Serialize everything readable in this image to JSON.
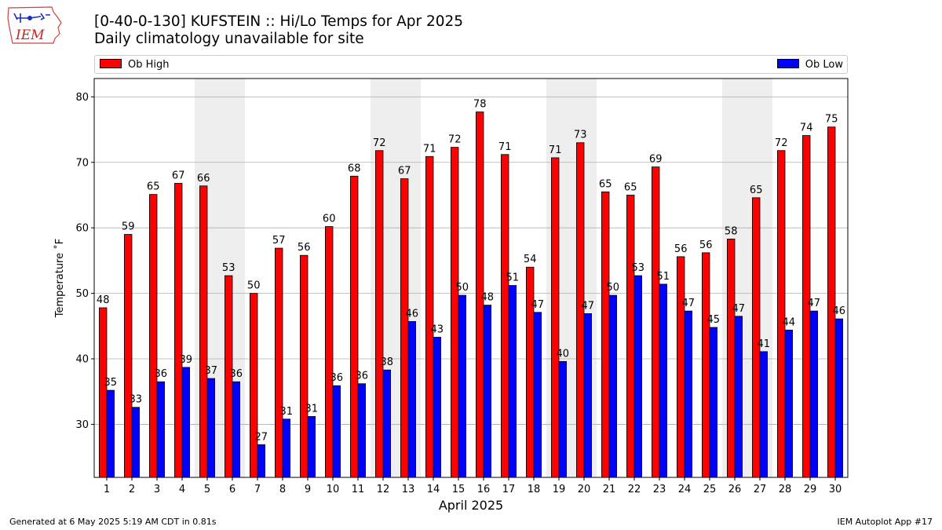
{
  "header": {
    "logo_text": "IEM",
    "title": "[0-40-0-130] KUFSTEIN :: Hi/Lo Temps for Apr 2025",
    "subtitle": "Daily climatology unavailable for site"
  },
  "legend": {
    "high_label": "Ob High",
    "low_label": "Ob Low",
    "placement": "top, above plot"
  },
  "colors": {
    "high": "#ff0000",
    "low": "#0000ff",
    "weekend_shade": "#eeeeee",
    "grid": "#b0b0b0"
  },
  "footer": {
    "left": "Generated at 6 May 2025 5:19 AM CDT in 0.81s",
    "right": "IEM Autoplot App #17"
  },
  "chart_data": {
    "type": "bar",
    "xlabel": "April 2025",
    "ylabel": "Temperature ˚F",
    "ylim": [
      21.9,
      82.8
    ],
    "yticks": [
      30,
      40,
      50,
      60,
      70,
      80
    ],
    "grid": true,
    "categories": [
      "1",
      "2",
      "3",
      "4",
      "5",
      "6",
      "7",
      "8",
      "9",
      "10",
      "11",
      "12",
      "13",
      "14",
      "15",
      "16",
      "17",
      "18",
      "19",
      "20",
      "21",
      "22",
      "23",
      "24",
      "25",
      "26",
      "27",
      "28",
      "29",
      "30"
    ],
    "shaded_days": [
      "5",
      "6",
      "12",
      "13",
      "19",
      "20",
      "26",
      "27"
    ],
    "series": [
      {
        "name": "Ob High",
        "values": [
          47.8,
          59.0,
          65.1,
          66.8,
          66.4,
          52.7,
          50.0,
          56.9,
          55.8,
          60.2,
          67.9,
          71.8,
          67.5,
          70.9,
          72.3,
          77.7,
          71.2,
          54.0,
          70.7,
          73.0,
          65.5,
          65.0,
          69.3,
          55.6,
          56.2,
          58.3,
          64.6,
          71.8,
          74.1,
          75.4
        ]
      },
      {
        "name": "Ob Low",
        "values": [
          35.2,
          32.6,
          36.5,
          38.7,
          37.0,
          36.5,
          26.9,
          30.8,
          31.2,
          35.9,
          36.2,
          38.3,
          45.7,
          43.3,
          49.7,
          48.2,
          51.2,
          47.1,
          39.6,
          46.9,
          49.7,
          52.7,
          51.4,
          47.3,
          44.8,
          46.5,
          41.1,
          44.4,
          47.3,
          46.1
        ]
      }
    ],
    "data_labels": {
      "high": [
        "48",
        "59",
        "65",
        "67",
        "66",
        "53",
        "50",
        "57",
        "56",
        "60",
        "68",
        "72",
        "67",
        "71",
        "72",
        "78",
        "71",
        "54",
        "71",
        "73",
        "65",
        "65",
        "69",
        "56",
        "56",
        "58",
        "65",
        "72",
        "74",
        "75"
      ],
      "low": [
        "35",
        "33",
        "36",
        "39",
        "37",
        "36",
        "27",
        "31",
        "31",
        "36",
        "36",
        "38",
        "46",
        "43",
        "50",
        "48",
        "51",
        "47",
        "40",
        "47",
        "50",
        "53",
        "51",
        "47",
        "45",
        "47",
        "41",
        "44",
        "47",
        "46"
      ]
    }
  }
}
